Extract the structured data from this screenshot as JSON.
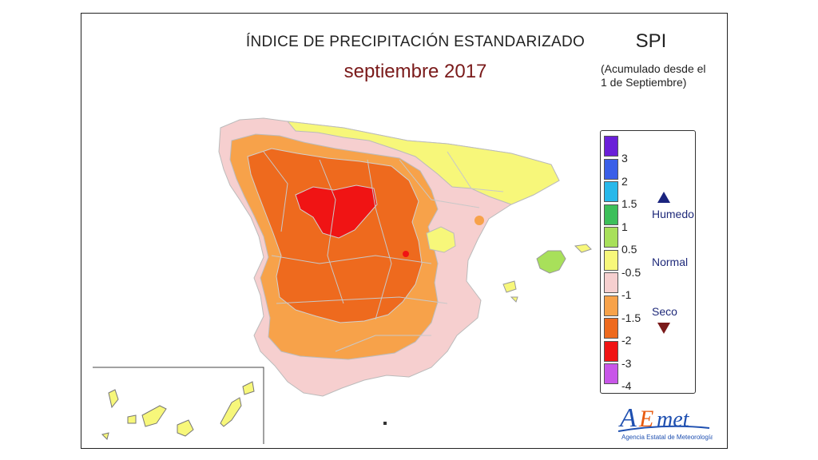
{
  "title": "ÍNDICE DE PRECIPITACIÓN ESTANDARIZADO",
  "subtitle": "septiembre 2017",
  "index_name": "SPI",
  "note_line1": "(Acumulado desde el",
  "note_line2": "1 de Septiembre)",
  "legend": {
    "bins": [
      {
        "label": "3",
        "color": "#6a1fd8"
      },
      {
        "label": "2",
        "color": "#3a5fe8"
      },
      {
        "label": "1.5",
        "color": "#28b8ea"
      },
      {
        "label": "1",
        "color": "#3cbf5a"
      },
      {
        "label": "0.5",
        "color": "#a8e05a"
      },
      {
        "label": "-0.5",
        "color": "#f7f77a"
      },
      {
        "label": "-1",
        "color": "#f6cfcf"
      },
      {
        "label": "-1.5",
        "color": "#f7a24a"
      },
      {
        "label": "-2",
        "color": "#ee6a1e"
      },
      {
        "label": "-3",
        "color": "#f01414"
      },
      {
        "label": "-4",
        "color": "#c856e8"
      }
    ],
    "categories": {
      "wet": "Humedo",
      "normal": "Normal",
      "dry": "Seco"
    }
  },
  "logo": {
    "name": "AEmet",
    "caption": "Agencia Estatal de Meteorología",
    "colors": [
      "#1e4fb0",
      "#e85a0e",
      "#1e4fb0"
    ]
  }
}
